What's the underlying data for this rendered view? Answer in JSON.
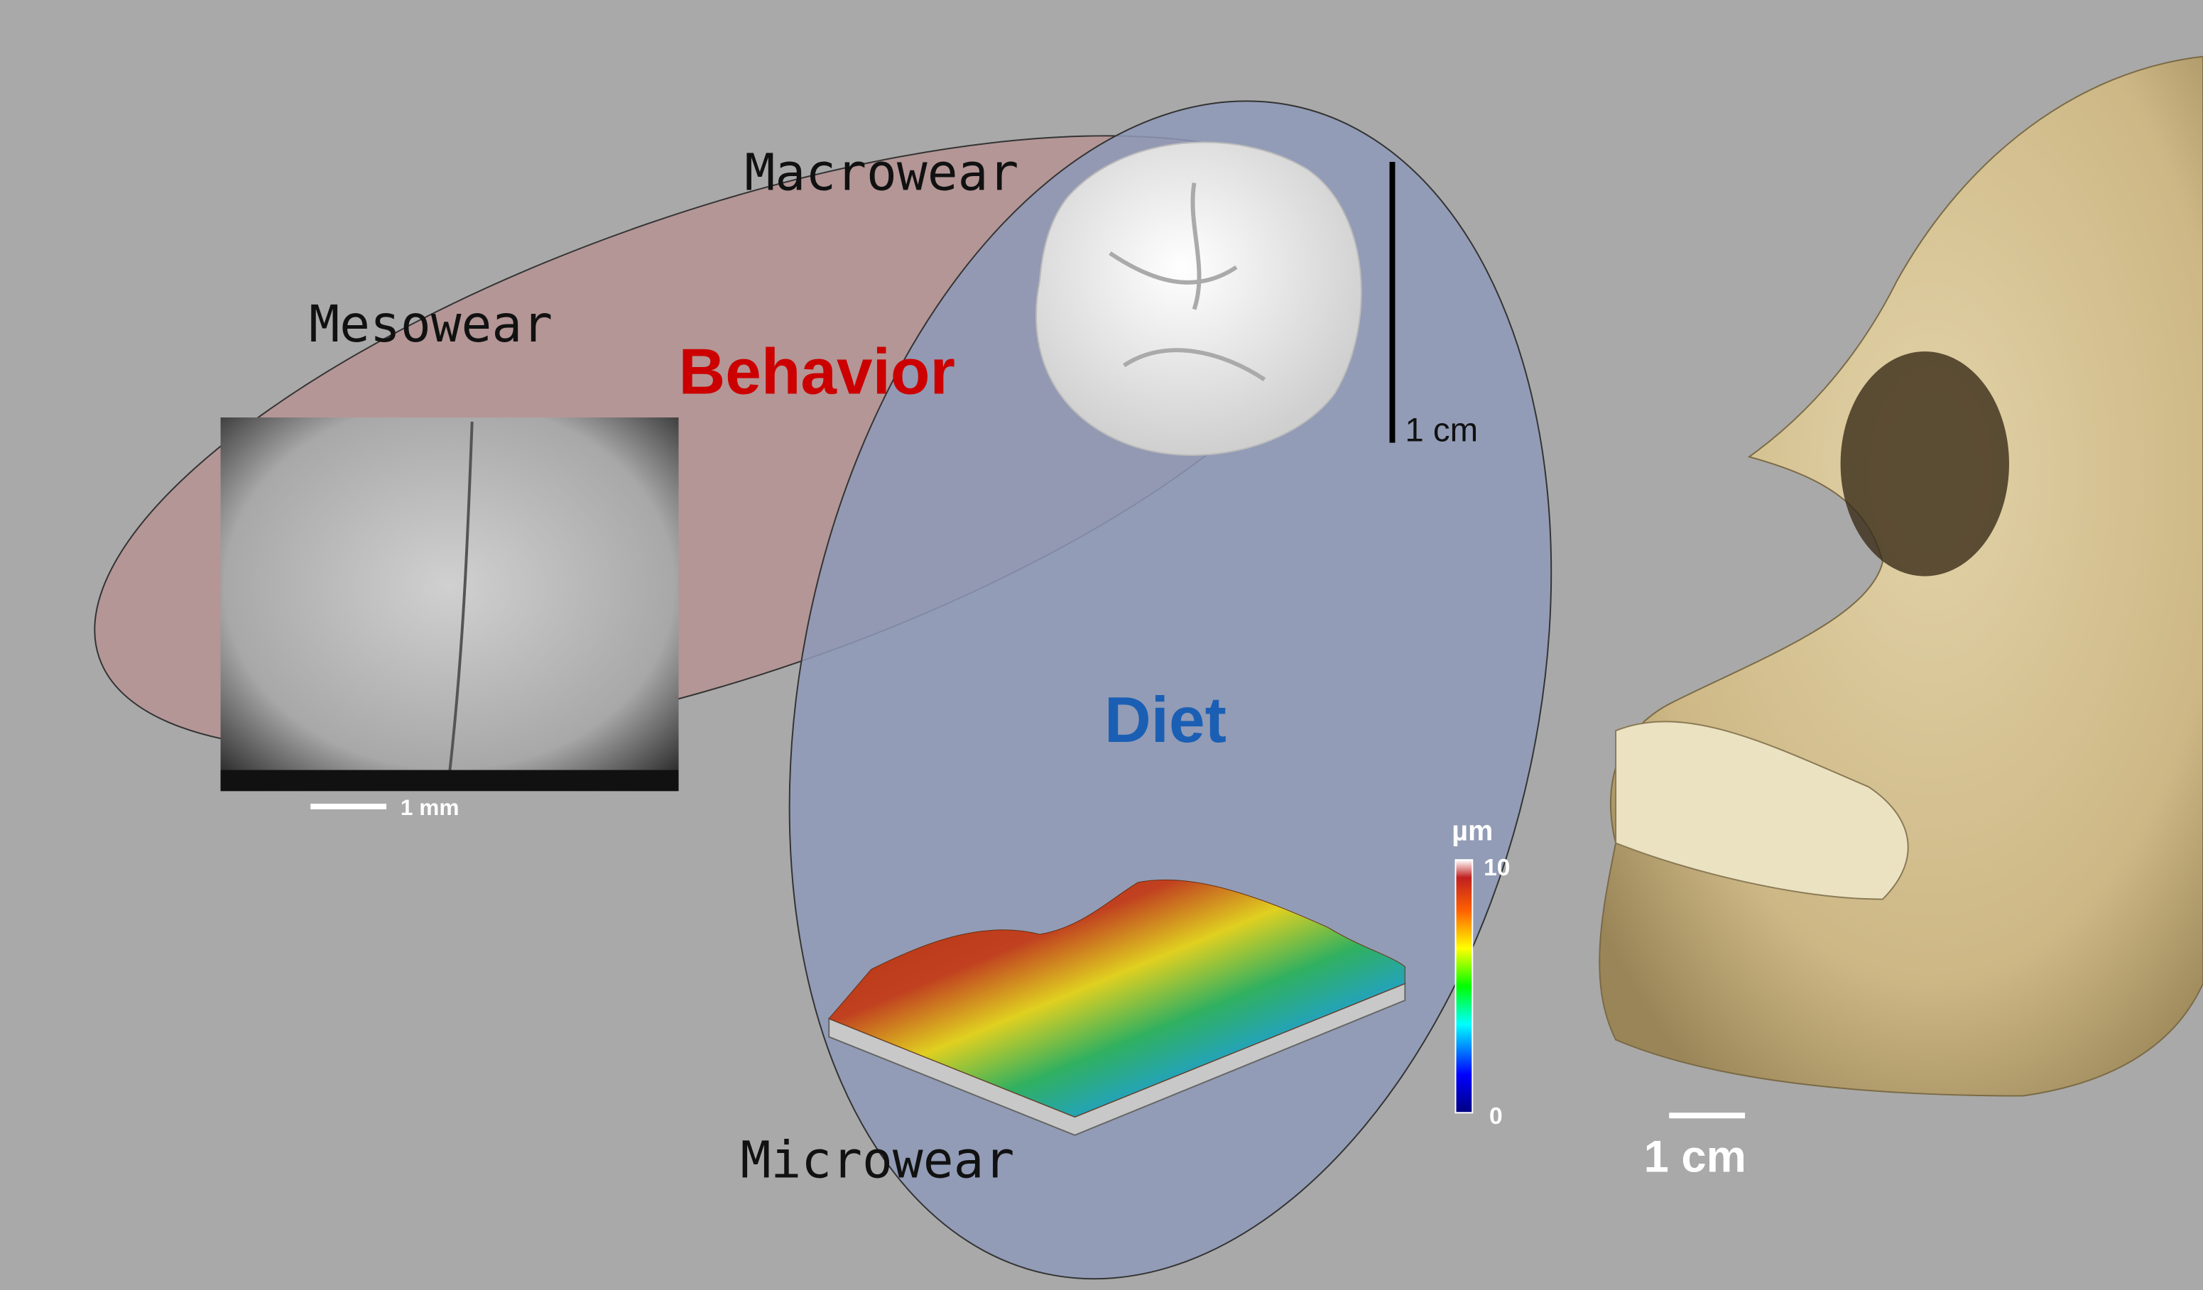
{
  "labels": {
    "macrowear": "Macrowear",
    "mesowear": "Mesowear",
    "microwear": "Microwear",
    "behavior": "Behavior",
    "diet": "Diet"
  },
  "scale_bars": {
    "tooth": "1 cm",
    "mesowear_image": "1 mm",
    "skull": "1 cm"
  },
  "colorbar": {
    "unit": "µm",
    "max": "10",
    "min": "0"
  }
}
